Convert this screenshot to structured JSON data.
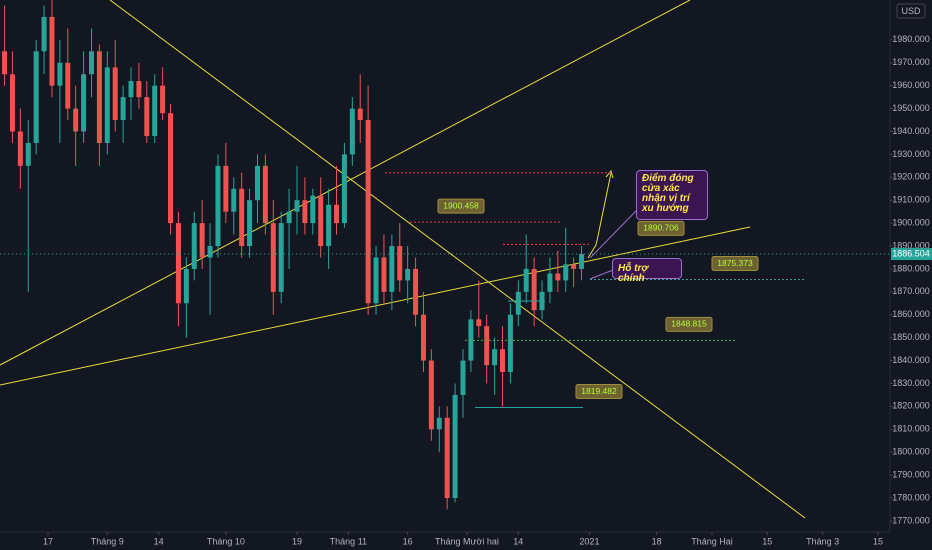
{
  "chart_data": {
    "type": "candlestick",
    "currency": "USD",
    "up_color": "#26a69a",
    "down_color": "#ef5350",
    "xlim": [
      -12.15,
      213.05
    ],
    "ylim": [
      1757.3,
      1997.4
    ],
    "xticks": [
      {
        "value": 0,
        "label": "17"
      },
      {
        "value": 15,
        "label": "Tháng 9"
      },
      {
        "value": 28,
        "label": "14"
      },
      {
        "value": 45,
        "label": "Tháng 10"
      },
      {
        "value": 63,
        "label": "19"
      },
      {
        "value": 76,
        "label": "Tháng 11"
      },
      {
        "value": 91,
        "label": "16"
      },
      {
        "value": 106,
        "label": "Tháng Mười hai"
      },
      {
        "value": 119,
        "label": "14"
      },
      {
        "value": 137,
        "label": "2021"
      },
      {
        "value": 154,
        "label": "18"
      },
      {
        "value": 168,
        "label": "Tháng Hai"
      },
      {
        "value": 182,
        "label": "15"
      },
      {
        "value": 196,
        "label": "Tháng 3"
      },
      {
        "value": 210,
        "label": "15"
      }
    ],
    "yticks": [
      {
        "value": 1770,
        "label": "1770.000"
      },
      {
        "value": 1780,
        "label": "1780.000"
      },
      {
        "value": 1790,
        "label": "1790.000"
      },
      {
        "value": 1800,
        "label": "1800.000"
      },
      {
        "value": 1810,
        "label": "1810.000"
      },
      {
        "value": 1820,
        "label": "1820.000"
      },
      {
        "value": 1830,
        "label": "1830.000"
      },
      {
        "value": 1840,
        "label": "1840.000"
      },
      {
        "value": 1850,
        "label": "1850.000"
      },
      {
        "value": 1860,
        "label": "1860.000"
      },
      {
        "value": 1870,
        "label": "1870.000"
      },
      {
        "value": 1880,
        "label": "1880.000"
      },
      {
        "value": 1890,
        "label": "1890.000"
      },
      {
        "value": 1900,
        "label": "1900.000"
      },
      {
        "value": 1910,
        "label": "1910.000"
      },
      {
        "value": 1920,
        "label": "1920.000"
      },
      {
        "value": 1930,
        "label": "1930.000"
      },
      {
        "value": 1940,
        "label": "1940.000"
      },
      {
        "value": 1950,
        "label": "1950.000"
      },
      {
        "value": 1960,
        "label": "1960.000"
      },
      {
        "value": 1970,
        "label": "1970.000"
      },
      {
        "value": 1980,
        "label": "1980.000"
      },
      {
        "value": 1990,
        "label": "1990.000"
      }
    ],
    "x": [
      -11,
      -9,
      -7,
      -5,
      -3,
      -1,
      1,
      3,
      5,
      7,
      9,
      11,
      13,
      15,
      17,
      19,
      21,
      23,
      25,
      27,
      29,
      31,
      33,
      35,
      37,
      39,
      41,
      43,
      45,
      47,
      49,
      51,
      53,
      55,
      57,
      59,
      61,
      63,
      65,
      67,
      69,
      71,
      73,
      75,
      77,
      79,
      81,
      83,
      85,
      87,
      89,
      91,
      93,
      95,
      97,
      99,
      101,
      103,
      105,
      107,
      109,
      111,
      113,
      115,
      117,
      119,
      121,
      123,
      125,
      127,
      129,
      131,
      133,
      135
    ],
    "open": [
      1975,
      1965,
      1940,
      1925,
      1935,
      1975,
      1990,
      1960,
      1970,
      1950,
      1940,
      1965,
      1975,
      1935,
      1968,
      1945,
      1955,
      1962,
      1955,
      1938,
      1960,
      1948,
      1900,
      1865,
      1880,
      1900,
      1885,
      1890,
      1925,
      1905,
      1915,
      1890,
      1910,
      1925,
      1900,
      1870,
      1900,
      1905,
      1910,
      1900,
      1912,
      1890,
      1908,
      1900,
      1930,
      1950,
      1945,
      1865,
      1885,
      1870,
      1890,
      1875,
      1880,
      1860,
      1840,
      1810,
      1815,
      1780,
      1825,
      1840,
      1858,
      1855,
      1838,
      1845,
      1835,
      1860,
      1870,
      1880,
      1862,
      1870,
      1878,
      1875,
      1882,
      1880
    ],
    "high": [
      1995,
      1975,
      1950,
      1945,
      1980,
      1995,
      1998,
      1980,
      1985,
      1960,
      1975,
      1985,
      1978,
      1975,
      1980,
      1960,
      1968,
      1970,
      1962,
      1965,
      1968,
      1952,
      1905,
      1885,
      1905,
      1910,
      1900,
      1930,
      1935,
      1920,
      1922,
      1915,
      1930,
      1930,
      1910,
      1905,
      1915,
      1925,
      1920,
      1915,
      1920,
      1915,
      1925,
      1935,
      1955,
      1965,
      1960,
      1890,
      1895,
      1895,
      1900,
      1890,
      1885,
      1870,
      1845,
      1820,
      1820,
      1830,
      1845,
      1862,
      1875,
      1860,
      1850,
      1855,
      1865,
      1875,
      1895,
      1885,
      1875,
      1885,
      1888,
      1898,
      1885,
      1890
    ],
    "low": [
      1960,
      1935,
      1915,
      1870,
      1930,
      1965,
      1955,
      1935,
      1945,
      1925,
      1935,
      1955,
      1925,
      1930,
      1940,
      1935,
      1945,
      1950,
      1935,
      1935,
      1945,
      1895,
      1855,
      1850,
      1875,
      1880,
      1860,
      1885,
      1900,
      1895,
      1885,
      1885,
      1900,
      1895,
      1860,
      1865,
      1880,
      1895,
      1895,
      1895,
      1885,
      1880,
      1895,
      1898,
      1925,
      1935,
      1860,
      1860,
      1865,
      1862,
      1870,
      1865,
      1855,
      1835,
      1805,
      1800,
      1775,
      1778,
      1815,
      1835,
      1850,
      1830,
      1825,
      1820,
      1830,
      1855,
      1865,
      1855,
      1858,
      1865,
      1870,
      1870,
      1872,
      1875
    ],
    "close": [
      1965,
      1940,
      1925,
      1935,
      1975,
      1990,
      1960,
      1970,
      1950,
      1940,
      1965,
      1975,
      1935,
      1968,
      1945,
      1955,
      1962,
      1955,
      1938,
      1960,
      1948,
      1900,
      1865,
      1880,
      1900,
      1885,
      1890,
      1925,
      1905,
      1915,
      1890,
      1910,
      1925,
      1900,
      1870,
      1900,
      1905,
      1910,
      1900,
      1912,
      1890,
      1908,
      1900,
      1930,
      1950,
      1945,
      1865,
      1885,
      1870,
      1890,
      1875,
      1880,
      1860,
      1840,
      1810,
      1815,
      1780,
      1825,
      1840,
      1858,
      1855,
      1838,
      1845,
      1835,
      1860,
      1870,
      1880,
      1862,
      1870,
      1878,
      1875,
      1882,
      1880,
      1886.504
    ],
    "last_price": {
      "value": 1886.504,
      "color": "#26a69a"
    },
    "levels": [
      {
        "value": 1900.458,
        "color": "#f23645",
        "style": "dotted"
      },
      {
        "value": 1890.706,
        "color": "#f23645",
        "style": "dotted"
      },
      {
        "value": 1875.373,
        "color": "#26a69a",
        "style": "dotted"
      },
      {
        "value": 1848.815,
        "color": "#4caf50",
        "style": "dotted"
      },
      {
        "value": 1819.482,
        "color": "#26a69a",
        "style": "solid"
      }
    ],
    "lines": [
      {
        "value": 1922,
        "color": "#f23645",
        "style": "dotted"
      },
      {
        "value": 1866,
        "color": "#26a69a",
        "style": "solid"
      }
    ],
    "annotations": [
      {
        "text": "Điểm đóng cửa xác nhận vị trí xu hướng"
      },
      {
        "text": "Hỗ trợ chính"
      }
    ]
  }
}
